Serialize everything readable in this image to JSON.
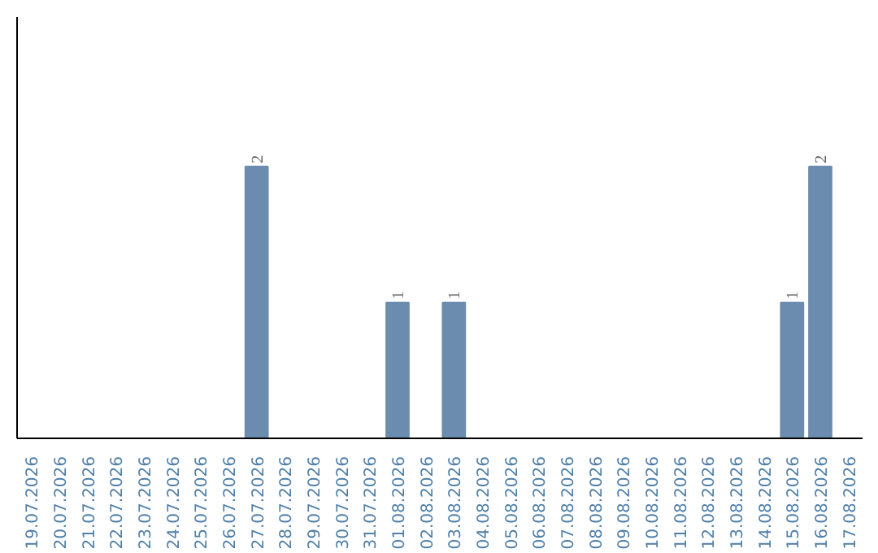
{
  "chart_data": {
    "type": "bar",
    "categories": [
      "19.07.2026",
      "20.07.2026",
      "21.07.2026",
      "22.07.2026",
      "23.07.2026",
      "24.07.2026",
      "25.07.2026",
      "26.07.2026",
      "27.07.2026",
      "28.07.2026",
      "29.07.2026",
      "30.07.2026",
      "31.07.2026",
      "01.08.2026",
      "02.08.2026",
      "03.08.2026",
      "04.08.2026",
      "05.08.2026",
      "06.08.2026",
      "07.08.2026",
      "08.08.2026",
      "09.08.2026",
      "10.08.2026",
      "11.08.2026",
      "12.08.2026",
      "13.08.2026",
      "14.08.2026",
      "15.08.2026",
      "16.08.2026",
      "17.08.2026"
    ],
    "values": [
      0,
      0,
      0,
      0,
      0,
      0,
      0,
      0,
      2,
      0,
      0,
      0,
      0,
      1,
      0,
      1,
      0,
      0,
      0,
      0,
      0,
      0,
      0,
      0,
      0,
      0,
      0,
      1,
      2,
      0
    ],
    "value_labels": [
      null,
      null,
      null,
      null,
      null,
      null,
      null,
      null,
      "2",
      null,
      null,
      null,
      null,
      "1",
      null,
      "1",
      null,
      null,
      null,
      null,
      null,
      null,
      null,
      null,
      null,
      null,
      null,
      "1",
      "2",
      null
    ],
    "color": "#6b8cae",
    "ylim": [
      0,
      3.1
    ],
    "tick_labels": "x",
    "grid": false
  }
}
